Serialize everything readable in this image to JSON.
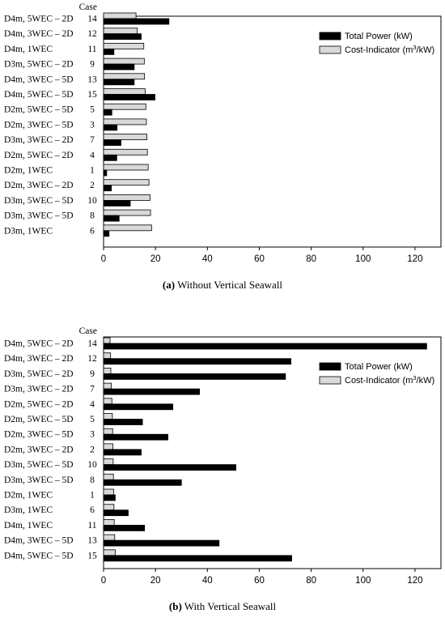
{
  "chart_data": [
    {
      "type": "bar",
      "orientation": "horizontal",
      "caption_label": "(a)",
      "caption_text": "Without Vertical Seawall",
      "case_header": "Case",
      "xlim": [
        0,
        130
      ],
      "xticks": [
        0,
        20,
        40,
        60,
        80,
        100,
        120
      ],
      "xtick_labels": [
        "0",
        "20",
        "40",
        "60",
        "80",
        "100",
        "120"
      ],
      "legend_position": "top-right",
      "series": [
        {
          "name": "Total Power (kW)",
          "color": "#000000"
        },
        {
          "name": "Cost-Indicator (m",
          "name_sup": "3",
          "name_tail": "/kW)",
          "color": "#d9d9d9"
        }
      ],
      "rows": [
        {
          "config": "D4m, 5WEC – 2D",
          "case": "14",
          "power": 25.2,
          "cost": 12.5
        },
        {
          "config": "D4m, 3WEC – 2D",
          "case": "12",
          "power": 14.5,
          "cost": 13.0
        },
        {
          "config": "D4m, 1WEC",
          "case": "11",
          "power": 4.0,
          "cost": 15.5
        },
        {
          "config": "D3m, 5WEC – 2D",
          "case": "9",
          "power": 11.8,
          "cost": 15.7
        },
        {
          "config": "D4m, 3WEC – 5D",
          "case": "13",
          "power": 11.8,
          "cost": 15.8
        },
        {
          "config": "D4m, 5WEC – 5D",
          "case": "15",
          "power": 19.8,
          "cost": 16.0
        },
        {
          "config": "D2m, 5WEC – 5D",
          "case": "5",
          "power": 3.2,
          "cost": 16.3
        },
        {
          "config": "D2m, 3WEC – 5D",
          "case": "3",
          "power": 5.2,
          "cost": 16.5
        },
        {
          "config": "D3m, 3WEC – 2D",
          "case": "7",
          "power": 6.7,
          "cost": 16.7
        },
        {
          "config": "D2m, 5WEC – 2D",
          "case": "4",
          "power": 5.1,
          "cost": 16.9
        },
        {
          "config": "D2m, 1WEC",
          "case": "1",
          "power": 1.2,
          "cost": 17.2
        },
        {
          "config": "D2m, 3WEC – 2D",
          "case": "2",
          "power": 3.0,
          "cost": 17.5
        },
        {
          "config": "D3m, 5WEC – 5D",
          "case": "10",
          "power": 10.3,
          "cost": 17.9
        },
        {
          "config": "D3m, 3WEC – 5D",
          "case": "8",
          "power": 6.0,
          "cost": 18.1
        },
        {
          "config": "D3m, 1WEC",
          "case": "6",
          "power": 2.1,
          "cost": 18.5
        }
      ]
    },
    {
      "type": "bar",
      "orientation": "horizontal",
      "caption_label": "(b)",
      "caption_text": "With Vertical Seawall",
      "case_header": "Case",
      "xlim": [
        0,
        130
      ],
      "xticks": [
        0,
        20,
        40,
        60,
        80,
        100,
        120
      ],
      "xtick_labels": [
        "0",
        "20",
        "40",
        "60",
        "80",
        "100",
        "120"
      ],
      "legend_position": "top-right",
      "series": [
        {
          "name": "Total Power (kW)",
          "color": "#000000"
        },
        {
          "name": "Cost-Indicator (m",
          "name_sup": "3",
          "name_tail": "/kW)",
          "color": "#d9d9d9"
        }
      ],
      "rows": [
        {
          "config": "D4m, 5WEC – 2D",
          "case": "14",
          "power": 124.5,
          "cost": 2.5
        },
        {
          "config": "D4m, 3WEC – 2D",
          "case": "12",
          "power": 72.2,
          "cost": 2.7
        },
        {
          "config": "D3m, 5WEC – 2D",
          "case": "9",
          "power": 70.1,
          "cost": 2.8
        },
        {
          "config": "D3m, 3WEC – 2D",
          "case": "7",
          "power": 37.0,
          "cost": 3.0
        },
        {
          "config": "D2m, 5WEC – 2D",
          "case": "4",
          "power": 26.7,
          "cost": 3.2
        },
        {
          "config": "D2m, 5WEC – 5D",
          "case": "5",
          "power": 15.0,
          "cost": 3.4
        },
        {
          "config": "D2m, 3WEC – 5D",
          "case": "3",
          "power": 24.8,
          "cost": 3.5
        },
        {
          "config": "D2m, 3WEC – 2D",
          "case": "2",
          "power": 14.5,
          "cost": 3.6
        },
        {
          "config": "D3m, 5WEC – 5D",
          "case": "10",
          "power": 51.0,
          "cost": 3.7
        },
        {
          "config": "D3m, 3WEC – 5D",
          "case": "8",
          "power": 30.0,
          "cost": 3.8
        },
        {
          "config": "D2m, 1WEC",
          "case": "1",
          "power": 4.5,
          "cost": 3.9
        },
        {
          "config": "D3m, 1WEC",
          "case": "6",
          "power": 9.5,
          "cost": 4.0
        },
        {
          "config": "D4m, 1WEC",
          "case": "11",
          "power": 15.8,
          "cost": 4.1
        },
        {
          "config": "D4m, 3WEC – 5D",
          "case": "13",
          "power": 44.5,
          "cost": 4.3
        },
        {
          "config": "D4m, 5WEC – 5D",
          "case": "15",
          "power": 72.5,
          "cost": 4.5
        }
      ]
    }
  ]
}
